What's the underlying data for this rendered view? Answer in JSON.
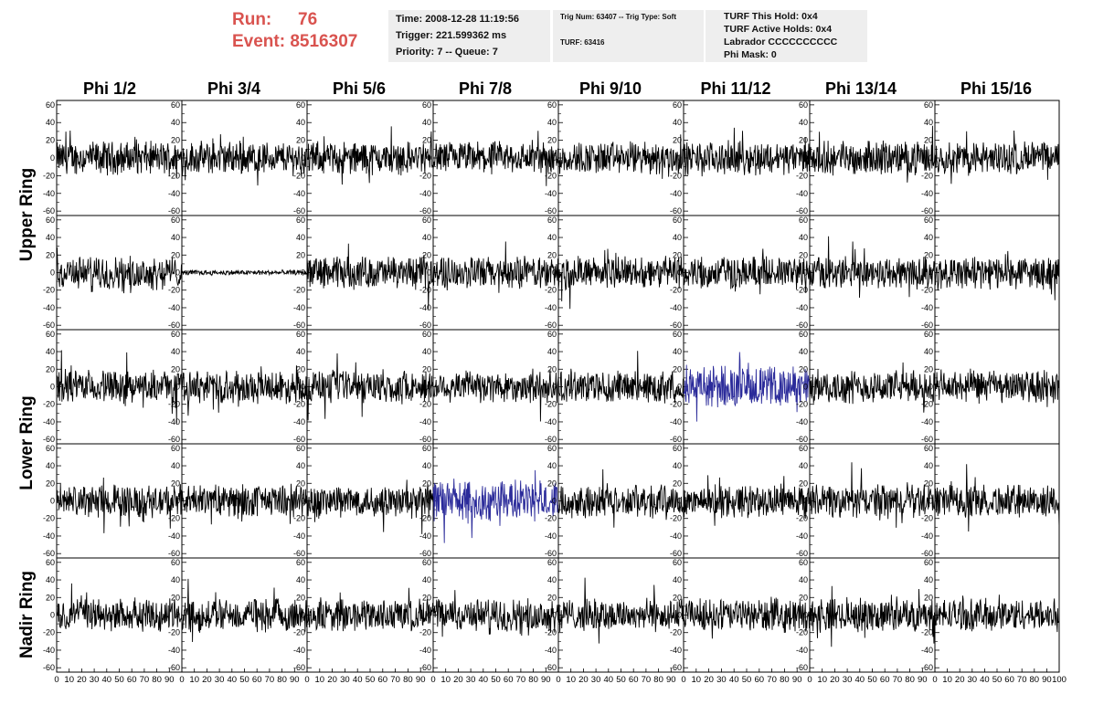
{
  "header": {
    "run_label": "Run:",
    "run_value": "76",
    "event_label": "Event:",
    "event_value": "8516307"
  },
  "info_box_1": {
    "time": "Time: 2008-12-28 11:19:56",
    "trigger": "Trigger: 221.599362 ms",
    "priority": "Priority: 7 -- Queue: 7"
  },
  "info_box_2": {
    "trig": "Trig Num: 63407 -- Trig Type: Soft",
    "turf": "TURF: 63416"
  },
  "info_box_3": {
    "hold": "TURF This Hold: 0x4",
    "active": "TURF Active Holds: 0x4",
    "labrador": "Labrador CCCCCCCCCC",
    "phimask": "Phi Mask: 0"
  },
  "columns": [
    "Phi 1/2",
    "Phi 3/4",
    "Phi 5/6",
    "Phi 7/8",
    "Phi 9/10",
    "Phi 11/12",
    "Phi 13/14",
    "Phi 15/16"
  ],
  "rows": [
    "Upper Ring",
    "Lower Ring",
    "Nadir Ring"
  ],
  "chart_data": {
    "type": "line",
    "grid": "8 columns x 5 rows of waveform panels",
    "ylim": [
      -65,
      65
    ],
    "xlim": [
      0,
      100
    ],
    "y_ticks": [
      -60,
      -40,
      -20,
      0,
      20,
      40,
      60
    ],
    "x_ticks": [
      0,
      10,
      20,
      30,
      40,
      50,
      60,
      70,
      80,
      90,
      100
    ],
    "x_tick_labels": [
      "0",
      "10",
      "20",
      "30",
      "40",
      "50",
      "60",
      "70",
      "80",
      "90",
      "100"
    ],
    "line_color": "#000000",
    "highlight_color": "#2b2b9a",
    "highlighted_panels": [
      [
        2,
        5
      ],
      [
        3,
        3
      ]
    ],
    "flat_panels": [
      [
        1,
        1
      ]
    ],
    "note_amplitude": "typical noise about +/-25"
  }
}
